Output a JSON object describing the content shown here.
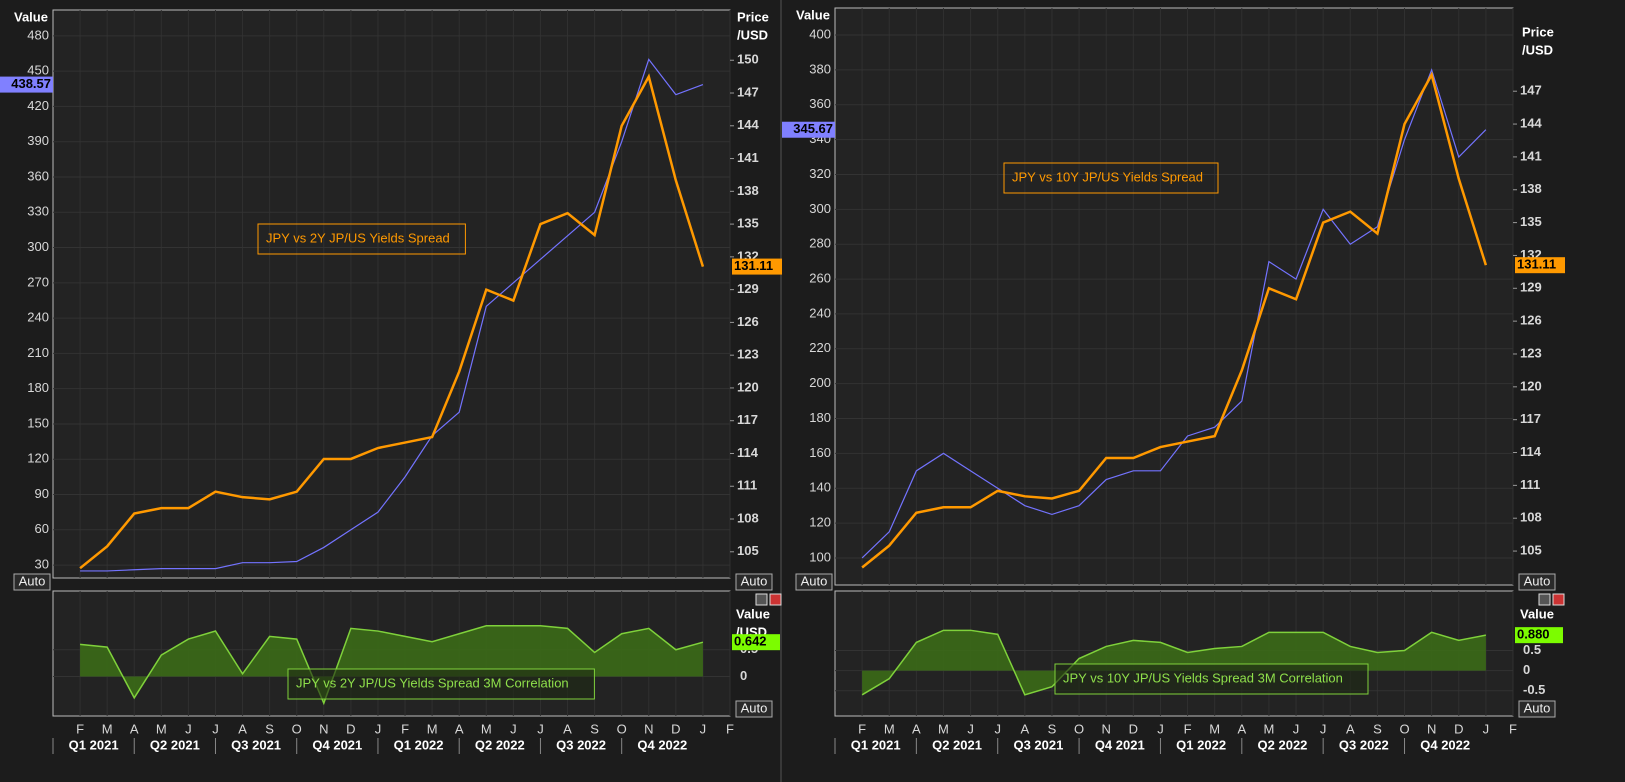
{
  "chart_data": [
    {
      "type": "line",
      "y_label": "Value",
      "y2_label_lines": [
        "Price",
        "/USD"
      ],
      "annotation": "JPY vs 2Y JP/US Yields Spread",
      "badges": [
        "Auto",
        "Auto"
      ],
      "x": [
        "2021-01",
        "2021-02",
        "2021-03",
        "2021-04",
        "2021-05",
        "2021-06",
        "2021-07",
        "2021-08",
        "2021-09",
        "2021-10",
        "2021-11",
        "2021-12",
        "2022-01",
        "2022-02",
        "2022-03",
        "2022-04",
        "2022-05",
        "2022-06",
        "2022-07",
        "2022-08",
        "2022-09",
        "2022-10",
        "2022-11",
        "2022-12"
      ],
      "ylim": [
        19,
        502
      ],
      "yticks": [
        30,
        60,
        90,
        120,
        150,
        180,
        210,
        240,
        270,
        300,
        330,
        360,
        390,
        420,
        450,
        480
      ],
      "y2lim": [
        102.6,
        154.6
      ],
      "y2ticks": [
        105,
        108,
        111,
        114,
        117,
        120,
        123,
        126,
        129,
        132,
        135,
        138,
        141,
        144,
        147,
        150
      ],
      "series": [
        {
          "color": "#7373ff",
          "axis": "y",
          "values": [
            25,
            25,
            26,
            27,
            27,
            27,
            32,
            32,
            33,
            45,
            60,
            75,
            105,
            140,
            160,
            250,
            270,
            290,
            310,
            330,
            390,
            460,
            430,
            438.57
          ]
        },
        {
          "color": "#ff9900",
          "axis": "y2",
          "values": [
            103.5,
            105.5,
            108.5,
            109,
            109,
            110.5,
            110,
            109.8,
            110.5,
            113.5,
            113.5,
            114.5,
            115,
            115.5,
            121.5,
            129,
            128,
            135,
            136,
            134,
            144,
            148.5,
            139,
            131.11
          ]
        }
      ]
    },
    {
      "type": "area",
      "y_label_lines": [
        "Value",
        "/USD"
      ],
      "annotation": "JPY vs 2Y JP/US Yields Spread 3M Correlation",
      "badge": "Auto",
      "color": "#7fd13b",
      "x": [
        "2021-01",
        "2021-02",
        "2021-03",
        "2021-04",
        "2021-05",
        "2021-06",
        "2021-07",
        "2021-08",
        "2021-09",
        "2021-10",
        "2021-11",
        "2021-12",
        "2022-01",
        "2022-02",
        "2022-03",
        "2022-04",
        "2022-05",
        "2022-06",
        "2022-07",
        "2022-08",
        "2022-09",
        "2022-10",
        "2022-11",
        "2022-12"
      ],
      "ylim": [
        -0.74,
        1.6
      ],
      "yticks": [
        0.5,
        0
      ],
      "values": [
        0.6,
        0.55,
        -0.4,
        0.4,
        0.7,
        0.85,
        0.05,
        0.75,
        0.7,
        -0.5,
        0.9,
        0.85,
        0.75,
        0.65,
        0.8,
        0.95,
        0.95,
        0.95,
        0.9,
        0.45,
        0.8,
        0.9,
        0.5,
        0.642
      ],
      "month_labels": [
        "F",
        "M",
        "A",
        "M",
        "J",
        "J",
        "A",
        "S",
        "O",
        "N",
        "D",
        "J",
        "F",
        "M",
        "A",
        "M",
        "J",
        "J",
        "A",
        "S",
        "O",
        "N",
        "D",
        "J",
        "F"
      ],
      "quarter_labels": [
        "Q1 2021",
        "Q2 2021",
        "Q3 2021",
        "Q4 2021",
        "Q1 2022",
        "Q2 2022",
        "Q3 2022",
        "Q4 2022"
      ]
    },
    {
      "type": "line",
      "y_label": "Value",
      "y2_label_lines": [
        "Price",
        "/USD"
      ],
      "annotation": "JPY vs 10Y JP/US Yields Spread",
      "badges": [
        "Auto",
        "Auto"
      ],
      "x": [
        "2021-01",
        "2021-02",
        "2021-03",
        "2021-04",
        "2021-05",
        "2021-06",
        "2021-07",
        "2021-08",
        "2021-09",
        "2021-10",
        "2021-11",
        "2021-12",
        "2022-01",
        "2022-02",
        "2022-03",
        "2022-04",
        "2022-05",
        "2022-06",
        "2022-07",
        "2022-08",
        "2022-09",
        "2022-10",
        "2022-11",
        "2022-12"
      ],
      "ylim": [
        84.5,
        415.5
      ],
      "yticks": [
        100,
        120,
        140,
        160,
        180,
        200,
        220,
        240,
        260,
        280,
        300,
        320,
        340,
        360,
        380,
        400
      ],
      "y2lim": [
        101.9,
        154.6
      ],
      "y2ticks": [
        105,
        108,
        111,
        114,
        117,
        120,
        123,
        126,
        129,
        132,
        135,
        138,
        141,
        144,
        147
      ],
      "series": [
        {
          "color": "#7373ff",
          "axis": "y",
          "values": [
            100,
            115,
            150,
            160,
            150,
            140,
            130,
            125,
            130,
            145,
            150,
            150,
            170,
            175,
            190,
            270,
            260,
            300,
            280,
            290,
            340,
            380,
            330,
            345.67
          ]
        },
        {
          "color": "#ff9900",
          "axis": "y2",
          "values": [
            103.5,
            105.5,
            108.5,
            109,
            109,
            110.5,
            110,
            109.8,
            110.5,
            113.5,
            113.5,
            114.5,
            115,
            115.5,
            121.5,
            129,
            128,
            135,
            136,
            134,
            144,
            148.5,
            139,
            131.11
          ]
        }
      ]
    },
    {
      "type": "area",
      "y_label_lines": [
        "Value"
      ],
      "annotation": "JPY vs 10Y JP/US Yields Spread 3M Correlation",
      "badge": "Auto",
      "color": "#7fd13b",
      "x": [
        "2021-01",
        "2021-02",
        "2021-03",
        "2021-04",
        "2021-05",
        "2021-06",
        "2021-07",
        "2021-08",
        "2021-09",
        "2021-10",
        "2021-11",
        "2021-12",
        "2022-01",
        "2022-02",
        "2022-03",
        "2022-04",
        "2022-05",
        "2022-06",
        "2022-07",
        "2022-08",
        "2022-09",
        "2022-10",
        "2022-11",
        "2022-12"
      ],
      "ylim": [
        -1.125,
        1.975
      ],
      "yticks": [
        0.5,
        0,
        -0.5
      ],
      "values": [
        -0.6,
        -0.2,
        0.7,
        1.0,
        1.0,
        0.9,
        -0.6,
        -0.4,
        0.3,
        0.6,
        0.75,
        0.7,
        0.45,
        0.55,
        0.6,
        0.95,
        0.95,
        0.95,
        0.6,
        0.45,
        0.5,
        0.95,
        0.75,
        0.88
      ],
      "value_labels": [
        null,
        null,
        null,
        null,
        null,
        null,
        null,
        null,
        null,
        null,
        null,
        null,
        null,
        null,
        null,
        null,
        null,
        null,
        null,
        null,
        null,
        null,
        null,
        "0.880"
      ],
      "month_labels": [
        "F",
        "M",
        "A",
        "M",
        "J",
        "J",
        "A",
        "S",
        "O",
        "N",
        "D",
        "J",
        "F",
        "M",
        "A",
        "M",
        "J",
        "J",
        "A",
        "S",
        "O",
        "N",
        "D",
        "J",
        "F"
      ],
      "quarter_labels": [
        "Q1 2021",
        "Q2 2021",
        "Q3 2021",
        "Q4 2021",
        "Q1 2022",
        "Q2 2022",
        "Q3 2022",
        "Q4 2022"
      ]
    }
  ]
}
